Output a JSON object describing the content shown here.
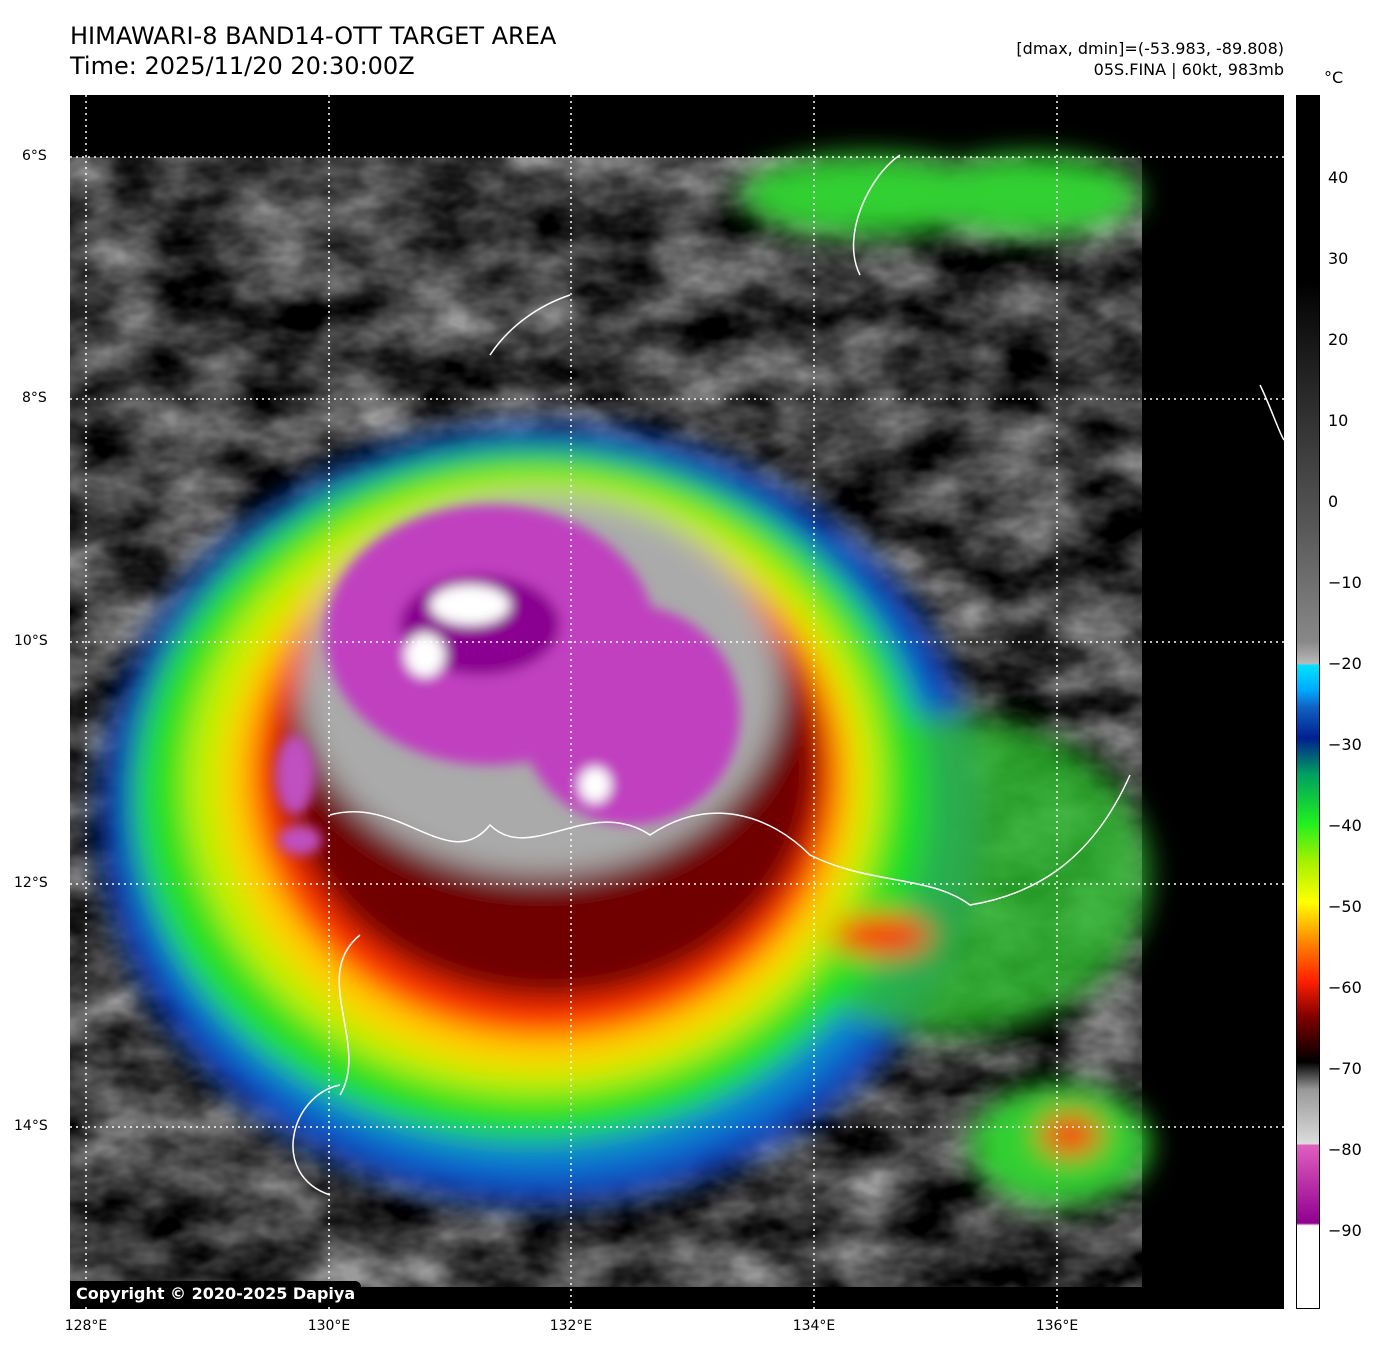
{
  "header": {
    "title": "HIMAWARI-8 BAND14-OTT TARGET AREA",
    "time": "Time: 2025/11/20 20:30:00Z",
    "dminmax": "[dmax, dmin]=(-53.983, -89.808)",
    "storm": "05S.FINA | 60kt, 983mb"
  },
  "map": {
    "lat_labels": [
      "6°S",
      "8°S",
      "10°S",
      "12°S",
      "14°S"
    ],
    "lon_labels": [
      "128°E",
      "130°E",
      "132°E",
      "134°E",
      "136°E"
    ],
    "copyright": "Copyright © 2020-2025 Dapiya"
  },
  "colorbar": {
    "unit": "°C",
    "ticks": [
      "40",
      "30",
      "20",
      "10",
      "0",
      "−10",
      "−20",
      "−30",
      "−40",
      "−50",
      "−60",
      "−70",
      "−80",
      "−90"
    ]
  }
}
